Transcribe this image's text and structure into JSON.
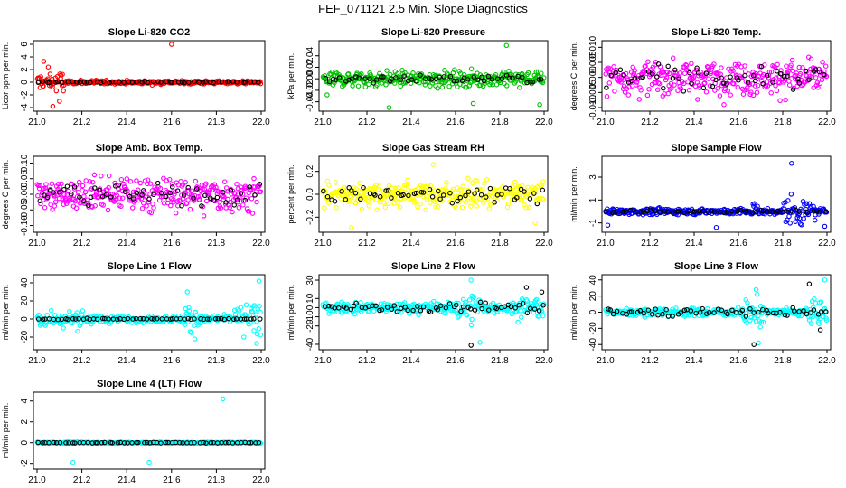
{
  "figure_title": "FEF_071121  2.5 Min. Slope Diagnostics",
  "chart_data": [
    {
      "type": "scatter",
      "title": "Slope Li-820 CO2",
      "ylabel": "Licor ppm per min.",
      "xlim": [
        21.0,
        22.0
      ],
      "ylim": [
        -4,
        6
      ],
      "xticks": [
        "21.0",
        "21.2",
        "21.4",
        "21.6",
        "21.8",
        "22.0"
      ],
      "yticks": [
        "-4",
        "-2",
        "0",
        "2",
        "4",
        "6"
      ],
      "series": [
        {
          "name": "primary",
          "color": "#ff0000",
          "n": 320,
          "center": 0,
          "spread": 0.25,
          "bursts": [
            {
              "x0": 21.0,
              "x1": 21.12,
              "spread": 1.4
            }
          ],
          "outliers": [
            [
              21.6,
              6.0
            ],
            [
              21.03,
              3.3
            ],
            [
              21.07,
              -3.8
            ],
            [
              21.1,
              -3.0
            ],
            [
              21.05,
              2.4
            ]
          ]
        },
        {
          "name": "secondary",
          "color": "#000000",
          "n": 55,
          "center": 0,
          "spread": 0.1
        }
      ]
    },
    {
      "type": "scatter",
      "title": "Slope Li-820 Pressure",
      "ylabel": "kPa per min.",
      "xlim": [
        21.0,
        22.0
      ],
      "ylim": [
        -0.05,
        0.06
      ],
      "xticks": [
        "21.0",
        "21.2",
        "21.4",
        "21.6",
        "21.8",
        "22.0"
      ],
      "yticks": [
        "-0.04",
        "-0.02",
        "0.00",
        "0.02",
        "0.04"
      ],
      "series": [
        {
          "name": "primary",
          "color": "#00c000",
          "n": 330,
          "center": 0.0,
          "spread": 0.011,
          "outliers": [
            [
              21.83,
              0.058
            ],
            [
              21.3,
              -0.05
            ],
            [
              21.68,
              -0.043
            ],
            [
              21.98,
              -0.045
            ],
            [
              21.02,
              -0.028
            ]
          ]
        },
        {
          "name": "secondary",
          "color": "#000000",
          "n": 55,
          "center": 0.0,
          "spread": 0.006
        }
      ]
    },
    {
      "type": "scatter",
      "title": "Slope Li-820 Temp.",
      "ylabel": "degrees C per min.",
      "xlim": [
        21.0,
        22.0
      ],
      "ylim": [
        -0.01,
        0.011
      ],
      "xticks": [
        "21.0",
        "21.2",
        "21.4",
        "21.6",
        "21.8",
        "22.0"
      ],
      "yticks": [
        "-0.010",
        "-0.005",
        "0.000",
        "0.005",
        "0.010"
      ],
      "series": [
        {
          "name": "primary",
          "color": "#ff00ff",
          "n": 330,
          "center": 0.0,
          "spread": 0.0048
        },
        {
          "name": "secondary",
          "color": "#000000",
          "n": 55,
          "center": 0.0,
          "spread": 0.003
        }
      ]
    },
    {
      "type": "scatter",
      "title": "Slope Amb. Box Temp.",
      "ylabel": "degrees C per min.",
      "xlim": [
        21.0,
        22.0
      ],
      "ylim": [
        -0.11,
        0.11
      ],
      "xticks": [
        "21.0",
        "21.2",
        "21.4",
        "21.6",
        "21.8",
        "22.0"
      ],
      "yticks": [
        "-0.10",
        "-0.05",
        "0.00",
        "0.05",
        "0.10"
      ],
      "series": [
        {
          "name": "primary",
          "color": "#ff00ff",
          "n": 330,
          "center": 0.0,
          "spread": 0.045
        },
        {
          "name": "secondary",
          "color": "#000000",
          "n": 55,
          "center": 0.0,
          "spread": 0.03
        }
      ]
    },
    {
      "type": "scatter",
      "title": "Slope Gas Stream RH",
      "ylabel": "percent per min.",
      "xlim": [
        21.0,
        22.0
      ],
      "ylim": [
        -0.3,
        0.3
      ],
      "xticks": [
        "21.0",
        "21.2",
        "21.4",
        "21.6",
        "21.8",
        "22.0"
      ],
      "yticks": [
        "-0.2",
        "0.0",
        "0.2"
      ],
      "series": [
        {
          "name": "primary",
          "color": "#ffff00",
          "n": 330,
          "center": 0.0,
          "spread": 0.09,
          "outliers": [
            [
              21.13,
              -0.29
            ],
            [
              21.5,
              0.26
            ],
            [
              21.96,
              -0.25
            ]
          ]
        },
        {
          "name": "secondary",
          "color": "#000000",
          "n": 55,
          "center": 0.0,
          "spread": 0.06
        }
      ]
    },
    {
      "type": "scatter",
      "title": "Slope Sample Flow",
      "ylabel": "ml/min per min.",
      "xlim": [
        21.0,
        22.0
      ],
      "ylim": [
        -1.5,
        4.5
      ],
      "xticks": [
        "21.0",
        "21.2",
        "21.4",
        "21.6",
        "21.8",
        "22.0"
      ],
      "yticks": [
        "-1",
        "1",
        "3"
      ],
      "series": [
        {
          "name": "primary",
          "color": "#0000ff",
          "n": 320,
          "center": 0.0,
          "spread": 0.22,
          "bursts": [
            {
              "x0": 21.8,
              "x1": 21.95,
              "spread": 0.9
            },
            {
              "x0": 21.66,
              "x1": 21.7,
              "spread": 0.7
            }
          ],
          "outliers": [
            [
              21.84,
              4.2
            ],
            [
              21.01,
              -1.2
            ],
            [
              21.5,
              -1.4
            ],
            [
              21.99,
              -1.3
            ]
          ]
        },
        {
          "name": "secondary",
          "color": "#000000",
          "n": 55,
          "center": 0.0,
          "spread": 0.12
        }
      ]
    },
    {
      "type": "scatter",
      "title": "Slope Line 1 Flow",
      "ylabel": "ml/min per min.",
      "xlim": [
        21.0,
        22.0
      ],
      "ylim": [
        -30,
        45
      ],
      "xticks": [
        "21.0",
        "21.2",
        "21.4",
        "21.6",
        "21.8",
        "22.0"
      ],
      "yticks": [
        "-20",
        "0",
        "20",
        "40"
      ],
      "series": [
        {
          "name": "primary",
          "color": "#00ffff",
          "n": 320,
          "center": 0,
          "spread": 3,
          "bursts": [
            {
              "x0": 21.0,
              "x1": 21.25,
              "spread": 8
            },
            {
              "x0": 21.65,
              "x1": 21.72,
              "spread": 14
            },
            {
              "x0": 21.88,
              "x1": 22.0,
              "spread": 14
            }
          ],
          "outliers": [
            [
              21.99,
              42
            ],
            [
              21.98,
              -27
            ],
            [
              21.67,
              30
            ]
          ]
        },
        {
          "name": "secondary",
          "color": "#000000",
          "n": 60,
          "center": 0,
          "spread": 0.5
        }
      ]
    },
    {
      "type": "scatter",
      "title": "Slope Line 2 Flow",
      "ylabel": "ml/min per min.",
      "xlim": [
        21.0,
        22.0
      ],
      "ylim": [
        -42,
        32
      ],
      "xticks": [
        "21.0",
        "21.2",
        "21.4",
        "21.6",
        "21.8",
        "22.0"
      ],
      "yticks": [
        "-40",
        "-20",
        "-10",
        "0",
        "10",
        "30"
      ],
      "series": [
        {
          "name": "primary",
          "color": "#00ffff",
          "n": 320,
          "center": 0,
          "spread": 5,
          "bursts": [
            {
              "x0": 21.6,
              "x1": 21.72,
              "spread": 14
            },
            {
              "x0": 21.88,
              "x1": 22.0,
              "spread": 10
            }
          ],
          "outliers": [
            [
              21.67,
              30
            ],
            [
              21.71,
              -38
            ]
          ]
        },
        {
          "name": "secondary",
          "color": "#000000",
          "n": 60,
          "center": 0,
          "spread": 4,
          "outliers": [
            [
              21.67,
              -41
            ],
            [
              21.92,
              22
            ],
            [
              21.99,
              17
            ]
          ]
        }
      ]
    },
    {
      "type": "scatter",
      "title": "Slope Line 3 Flow",
      "ylabel": "ml/min per min.",
      "xlim": [
        21.0,
        22.0
      ],
      "ylim": [
        -42,
        42
      ],
      "xticks": [
        "21.0",
        "21.2",
        "21.4",
        "21.6",
        "21.8",
        "22.0"
      ],
      "yticks": [
        "-40",
        "-20",
        "0",
        "20",
        "40"
      ],
      "series": [
        {
          "name": "primary",
          "color": "#00ffff",
          "n": 320,
          "center": 0,
          "spread": 4,
          "bursts": [
            {
              "x0": 21.62,
              "x1": 21.72,
              "spread": 14
            },
            {
              "x0": 21.9,
              "x1": 22.0,
              "spread": 12
            }
          ],
          "outliers": [
            [
              21.68,
              28
            ],
            [
              21.99,
              40
            ],
            [
              21.69,
              -38
            ]
          ]
        },
        {
          "name": "secondary",
          "color": "#000000",
          "n": 60,
          "center": 0,
          "spread": 4,
          "outliers": [
            [
              21.67,
              -40
            ],
            [
              21.92,
              35
            ],
            [
              21.97,
              -22
            ]
          ]
        }
      ]
    },
    {
      "type": "scatter",
      "title": "Slope Line 4 (LT) Flow",
      "ylabel": "ml/min per min.",
      "xlim": [
        21.0,
        22.0
      ],
      "ylim": [
        -2.2,
        4.5
      ],
      "xticks": [
        "21.0",
        "21.2",
        "21.4",
        "21.6",
        "21.8",
        "22.0"
      ],
      "yticks": [
        "-2",
        "0",
        "2",
        "4"
      ],
      "series": [
        {
          "name": "primary",
          "color": "#00ffff",
          "n": 320,
          "center": 0,
          "spread": 0.06,
          "outliers": [
            [
              21.83,
              4.2
            ],
            [
              21.16,
              -1.9
            ],
            [
              21.5,
              -1.9
            ]
          ]
        },
        {
          "name": "secondary",
          "color": "#000000",
          "n": 60,
          "center": 0,
          "spread": 0.03
        }
      ]
    }
  ]
}
